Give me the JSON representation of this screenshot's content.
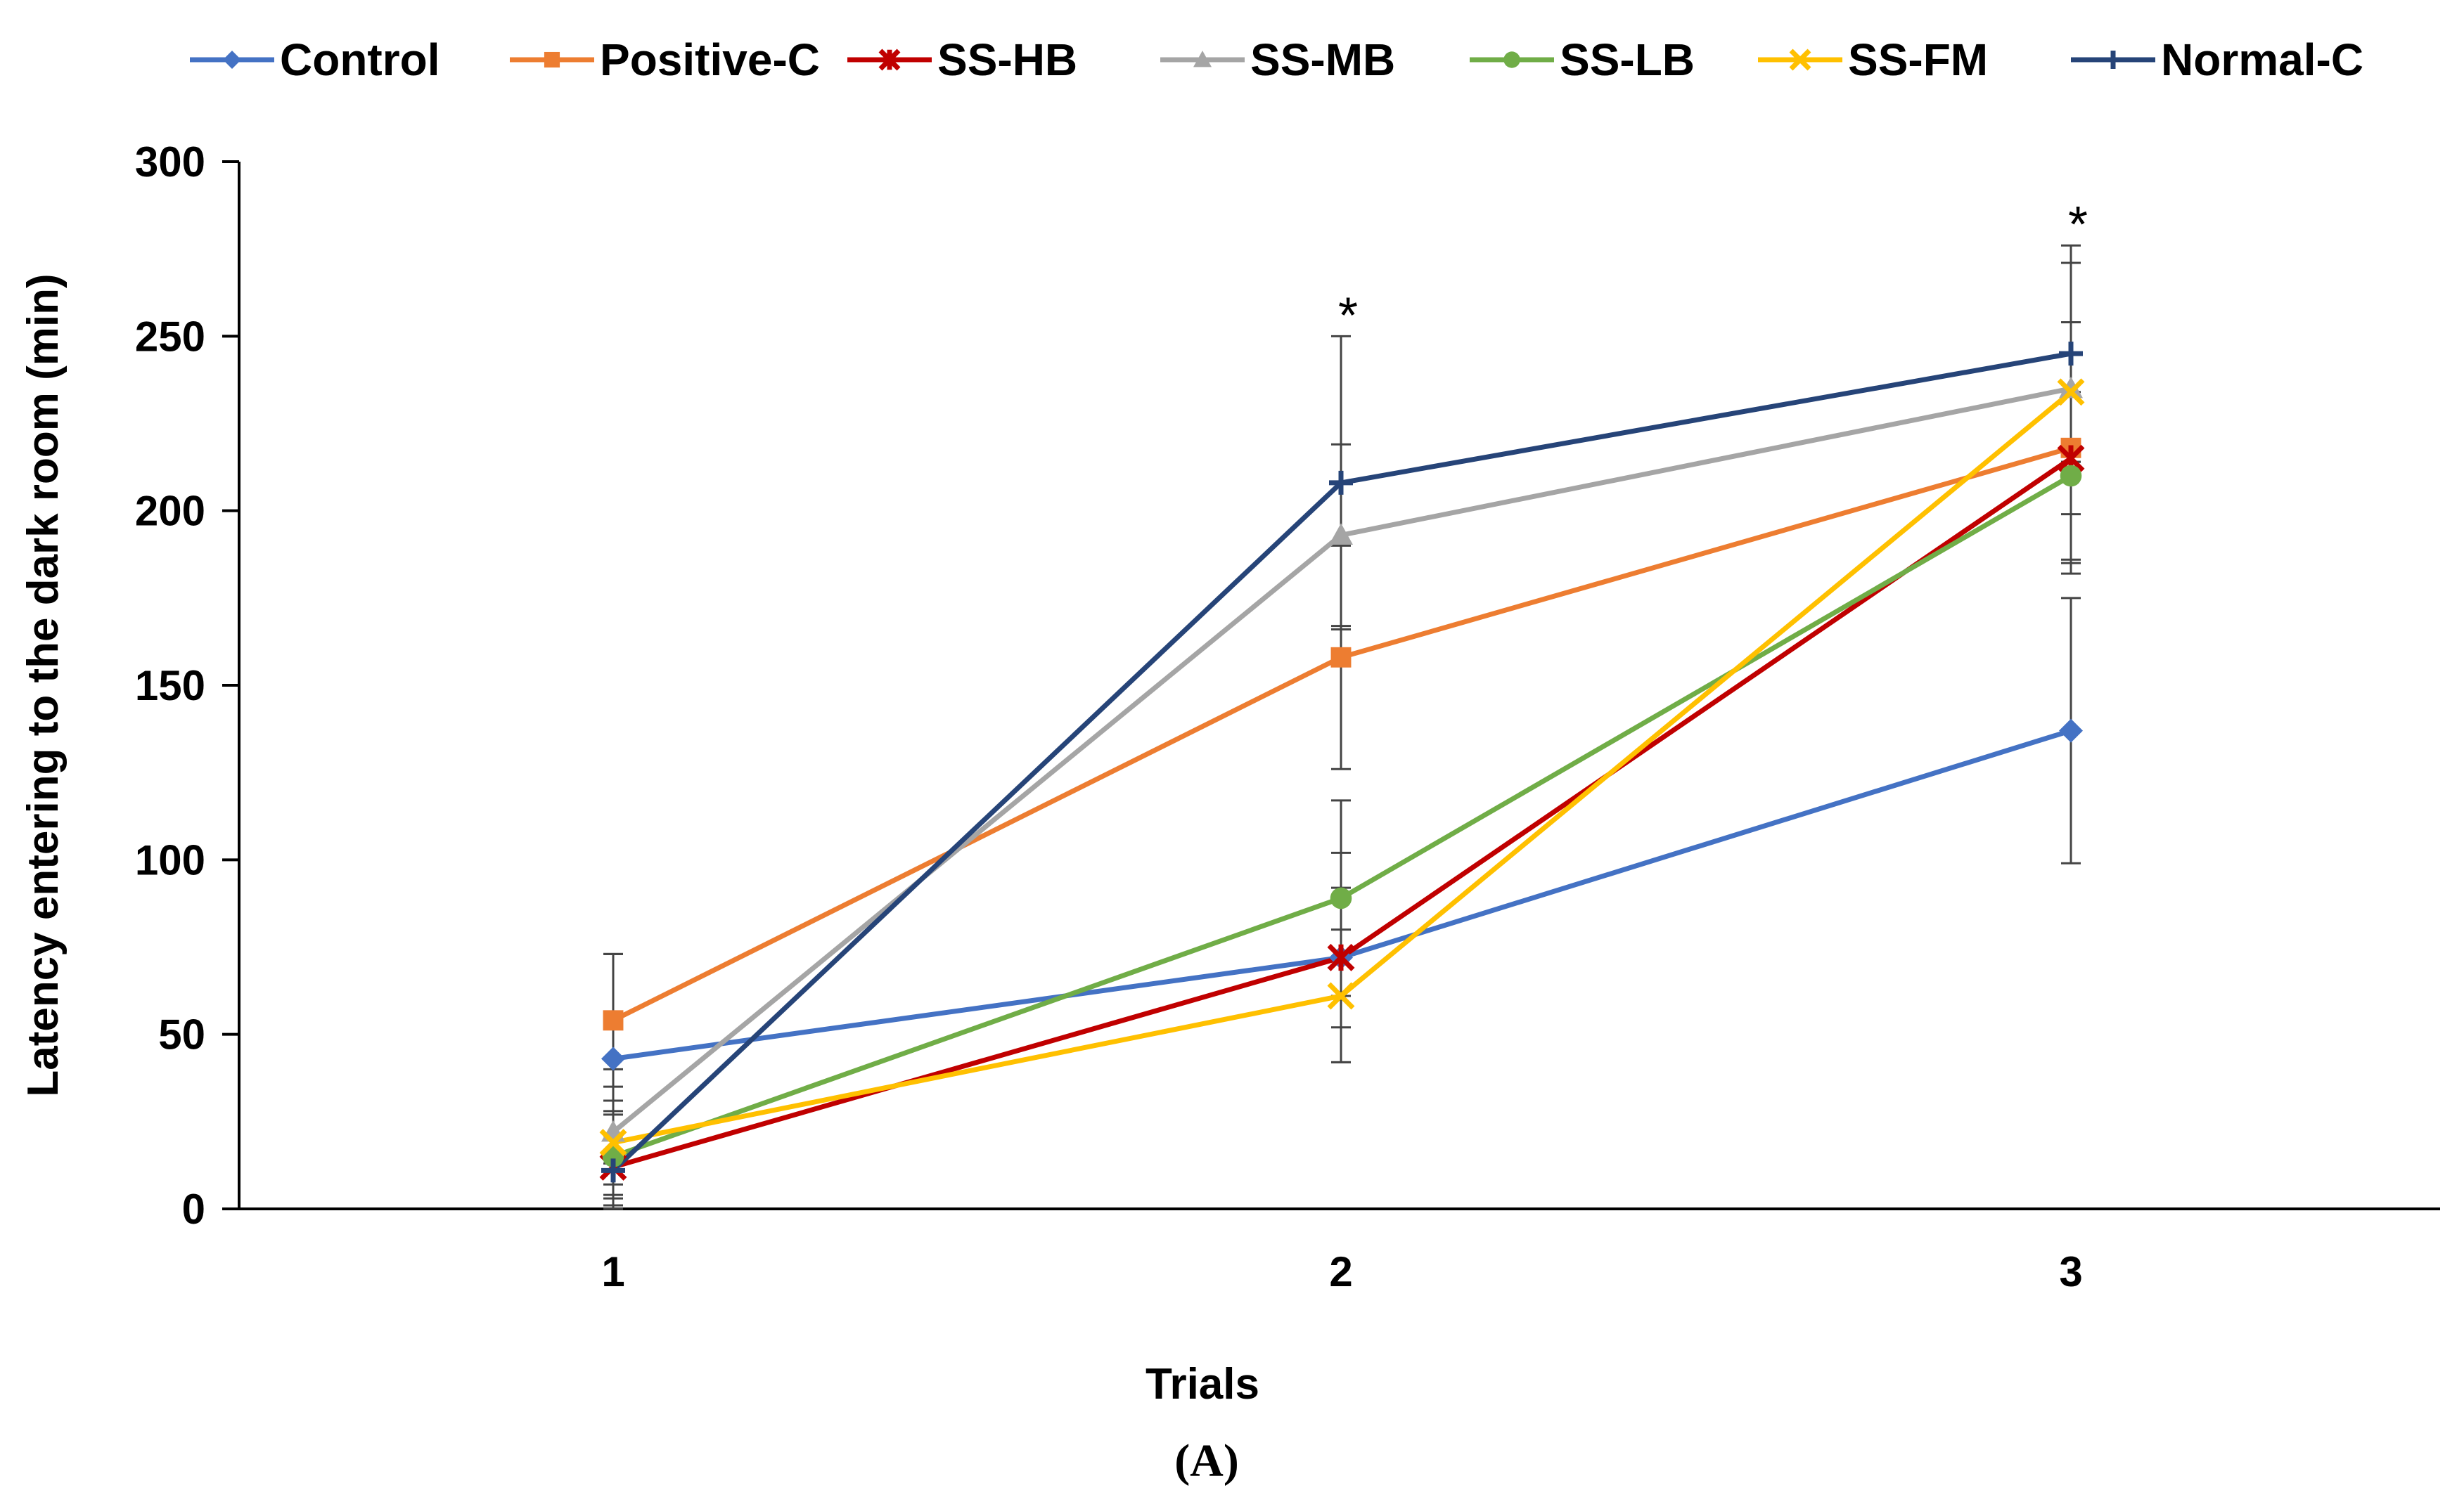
{
  "chart_data": {
    "type": "line",
    "x": [
      1,
      2,
      3
    ],
    "x_tick_labels": [
      "1",
      "2",
      "3"
    ],
    "xlabel": "Trials",
    "ylabel": "Latency entering to the dark room (min)",
    "ylim": [
      0,
      300
    ],
    "y_ticks": [
      0,
      50,
      100,
      150,
      200,
      250,
      300
    ],
    "caption": "(A)",
    "legend_position": "top",
    "significance": [
      {
        "x": 2,
        "label": "*"
      },
      {
        "x": 3,
        "label": "*"
      }
    ],
    "series": [
      {
        "name": "Control",
        "color": "#4472C4",
        "marker": "diamond",
        "values": [
          43,
          72,
          137
        ],
        "errors": [
          30,
          30,
          38
        ]
      },
      {
        "name": "Positive-C",
        "color": "#ED7D31",
        "marker": "square",
        "values": [
          54,
          158,
          218
        ],
        "errors": [
          19,
          32,
          36
        ]
      },
      {
        "name": "SS-HB",
        "color": "#C00000",
        "marker": "star",
        "values": [
          12,
          72,
          215
        ],
        "errors": [
          16,
          20,
          30
        ]
      },
      {
        "name": "SS-MB",
        "color": "#A5A5A5",
        "marker": "triangle",
        "values": [
          22,
          193,
          235
        ],
        "errors": [
          18,
          26,
          36
        ]
      },
      {
        "name": "SS-LB",
        "color": "#70AD47",
        "marker": "circle",
        "values": [
          15,
          89,
          210
        ],
        "errors": [
          12,
          28,
          24
        ]
      },
      {
        "name": "SS-FM",
        "color": "#FFC000",
        "marker": "x",
        "values": [
          19,
          61,
          234
        ],
        "errors": [
          12,
          19,
          20
        ]
      },
      {
        "name": "Normal-C",
        "color": "#264478",
        "marker": "plus",
        "values": [
          11,
          208,
          245
        ],
        "errors": [
          10,
          42,
          31
        ]
      }
    ]
  }
}
